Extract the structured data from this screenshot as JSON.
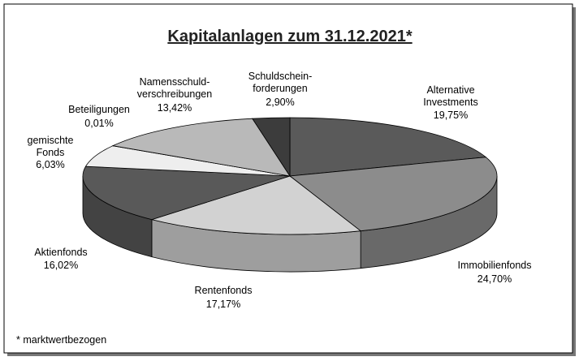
{
  "chart_data": {
    "type": "pie3d",
    "title": "Kapitalanlagen zum 31.12.2021*",
    "footnote": "* marktwertbezogen",
    "categories": [
      "Alternative\nInvestments",
      "Immobilienfonds",
      "Rentenfonds",
      "Aktienfonds",
      "gemischte\nFonds",
      "Beteiligungen",
      "Namensschuld-\nverschreibungen",
      "Schuldschein-\nforderungen"
    ],
    "values": [
      19.75,
      24.7,
      17.17,
      16.02,
      6.03,
      0.01,
      13.42,
      2.9
    ],
    "value_labels": [
      "19,75%",
      "24,70%",
      "17,17%",
      "16,02%",
      "6,03%",
      "0,01%",
      "13,42%",
      "2,90%"
    ],
    "colors": [
      "#5a5a5a",
      "#8c8c8c",
      "#d2d2d2",
      "#595959",
      "#eeeeee",
      "#aaaaaa",
      "#b9b9b9",
      "#3c3c3c"
    ]
  }
}
